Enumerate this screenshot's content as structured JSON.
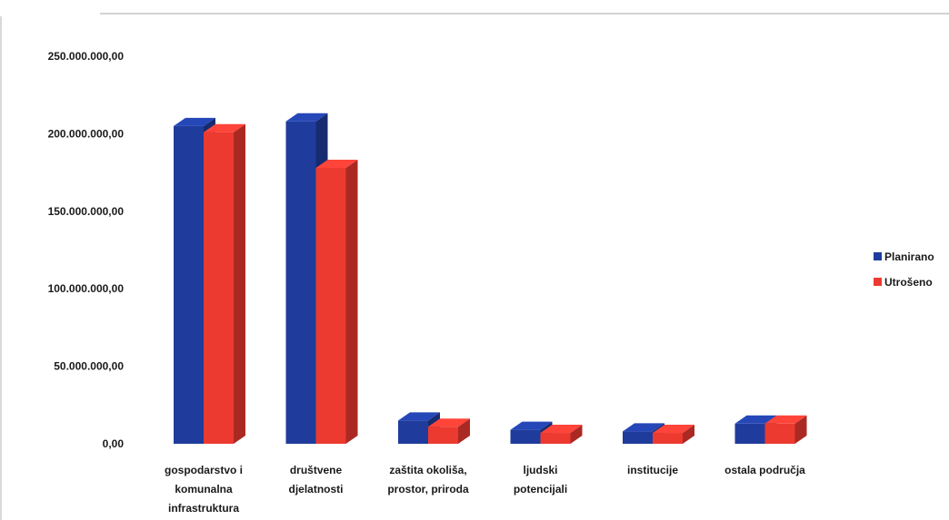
{
  "chart_data": {
    "type": "bar",
    "style": "3d-clustered-column",
    "categories": [
      "gospodarstvo i komunalna infrastruktura",
      "društvene djelatnosti",
      "zaštita okoliša, prostor, priroda",
      "ljudski potencijali",
      "institucije",
      "ostala područja"
    ],
    "category_lines": [
      [
        "gospodarstvo i",
        "komunalna",
        "infrastruktura"
      ],
      [
        "društvene",
        "djelatnosti"
      ],
      [
        "zaštita okoliša,",
        "prostor, priroda"
      ],
      [
        "ljudski",
        "potencijali"
      ],
      [
        "institucije"
      ],
      [
        "ostala područja"
      ]
    ],
    "series": [
      {
        "name": "Planirano",
        "color": "#1f3c9c",
        "values": [
          205000000,
          208000000,
          15000000,
          9000000,
          8000000,
          13000000
        ]
      },
      {
        "name": "Utrošeno",
        "color": "#ec3a30",
        "values": [
          201000000,
          178000000,
          11000000,
          7000000,
          7000000,
          13000000
        ]
      }
    ],
    "yticks": [
      "0,00",
      "50.000.000,00",
      "100.000.000,00",
      "150.000.000,00",
      "200.000.000,00",
      "250.000.000,00"
    ],
    "ylim": [
      0,
      250000000
    ],
    "grid": false,
    "legend_position": "right"
  }
}
